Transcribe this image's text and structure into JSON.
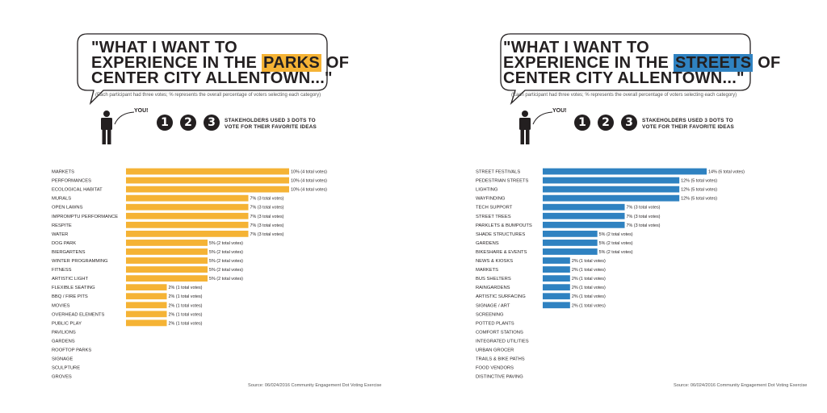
{
  "chart_data": [
    {
      "type": "bar",
      "orientation": "horizontal",
      "title": "\"WHAT I WANT TO EXPERIENCE IN THE PARKS OF CENTER CITY ALLENTOWN...\"",
      "headline_line1": "\"WHAT I WANT TO",
      "headline_pre": "EXPERIENCE IN THE ",
      "headline_highlight": "PARKS",
      "headline_post": " OF",
      "headline_line3": "CENTER CITY ALLENTOWN...\"",
      "subtitle": "(Each participant had three votes; % represents the overall percentage of voters selecting each category)",
      "you_label": "YOU!",
      "dot_labels": [
        "1",
        "2",
        "3"
      ],
      "instruction_line1": "STAKEHOLDERS USED 3 DOTS TO",
      "instruction_line2": "VOTE FOR THEIR FAVORITE IDEAS",
      "source": "Source: 06/024/2016 Community Engagement Dot Voting Exercise",
      "color": "#f5b335",
      "categories": [
        "MARKETS",
        "PERFORMANCES",
        "ECOLOGICAL HABITAT",
        "MURALS",
        "OPEN LAWNS",
        "IMPROMPTU PERFORMANCE",
        "RESPITE",
        "WATER",
        "DOG PARK",
        "BIERGARTENS",
        "WINTER PROGRAMMING",
        "FITNESS",
        "ARTISTIC LIGHT",
        "FLEXIBLE SEATING",
        "BBQ / FIRE PITS",
        "MOVIES",
        "OVERHEAD ELEMENTS",
        "PUBLIC PLAY",
        "PAVILIONS",
        "GARDENS",
        "ROOFTOP PARKS",
        "SIGNAGE",
        "SCULPTURE",
        "GROVES"
      ],
      "values": [
        4,
        4,
        4,
        3,
        3,
        3,
        3,
        3,
        2,
        2,
        2,
        2,
        2,
        1,
        1,
        1,
        1,
        1,
        0,
        0,
        0,
        0,
        0,
        0
      ],
      "data_labels": [
        "10% (4 total votes)",
        "10% (4 total votes)",
        "10% (4 total votes)",
        "7% (3 total votes)",
        "7% (3 total votes)",
        "7% (3 total votes)",
        "7% (3 total votes)",
        "7% (3 total votes)",
        "5% (2 total votes)",
        "5% (2 total votes)",
        "5% (2 total votes)",
        "5% (2 total votes)",
        "5% (2 total votes)",
        "2% (1 total votes)",
        "2% (1 total votes)",
        "2% (1 total votes)",
        "2% (1 total votes)",
        "2% (1 total votes)",
        "",
        "",
        "",
        "",
        "",
        ""
      ],
      "xlim": [
        0,
        4
      ],
      "grid": false,
      "legend": "none"
    },
    {
      "type": "bar",
      "orientation": "horizontal",
      "title": "\"WHAT I WANT TO EXPERIENCE IN THE STREETS OF CENTER CITY ALLENTOWN...\"",
      "headline_line1": "\"WHAT I WANT TO",
      "headline_pre": "EXPERIENCE IN THE ",
      "headline_highlight": "STREETS",
      "headline_post": " OF",
      "headline_line3": "CENTER CITY ALLENTOWN...\"",
      "subtitle": "(Each participant had three votes; % represents the overall percentage of voters selecting each category)",
      "you_label": "YOU!",
      "dot_labels": [
        "1",
        "2",
        "3"
      ],
      "instruction_line1": "STAKEHOLDERS USED 3 DOTS TO",
      "instruction_line2": "VOTE FOR THEIR FAVORITE IDEAS",
      "source": "Source: 06/024/2016 Community Engagement Dot Voting Exercise",
      "color": "#2f82c1",
      "categories": [
        "STREET FESTIVALS",
        "PEDESTRIAN STREETS",
        "LIGHTING",
        "WAYFINDING",
        "TECH SUPPORT",
        "STREET TREES",
        "PARKLETS & BUMPOUTS",
        "SHADE STRUCTURES",
        "GARDENS",
        "BIKESHARE & EVENTS",
        "NEWS & KIOSKS",
        "MARKETS",
        "BUS SHELTERS",
        "RAINGARDENS",
        "ARTISTIC SURFACING",
        "SIGNAGE / ART",
        "SCREENING",
        "POTTED PLANTS",
        "COMFORT STATIONS",
        "INTEGRATED UTILITIES",
        "URBAN GROCER",
        "TRAILS & BIKE PATHS",
        "FOOD VENDORS",
        "DISTINCTIVE PAVING"
      ],
      "values": [
        6,
        5,
        5,
        5,
        3,
        3,
        3,
        2,
        2,
        2,
        1,
        1,
        1,
        1,
        1,
        1,
        0,
        0,
        0,
        0,
        0,
        0,
        0,
        0
      ],
      "data_labels": [
        "14% (6 total votes)",
        "12% (5 total votes)",
        "12% (5 total votes)",
        "12% (5 total votes)",
        "7% (3 total votes)",
        "7% (3 total votes)",
        "7% (3 total votes)",
        "5% (2 total votes)",
        "5% (2 total votes)",
        "5% (2 total votes)",
        "2% (1 total votes)",
        "2% (1 total votes)",
        "2% (1 total votes)",
        "2% (1 total votes)",
        "2% (1 total votes)",
        "2% (1 total votes)",
        "",
        "",
        "",
        "",
        "",
        "",
        "",
        ""
      ],
      "xlim": [
        0,
        6
      ],
      "grid": false,
      "legend": "none"
    }
  ]
}
